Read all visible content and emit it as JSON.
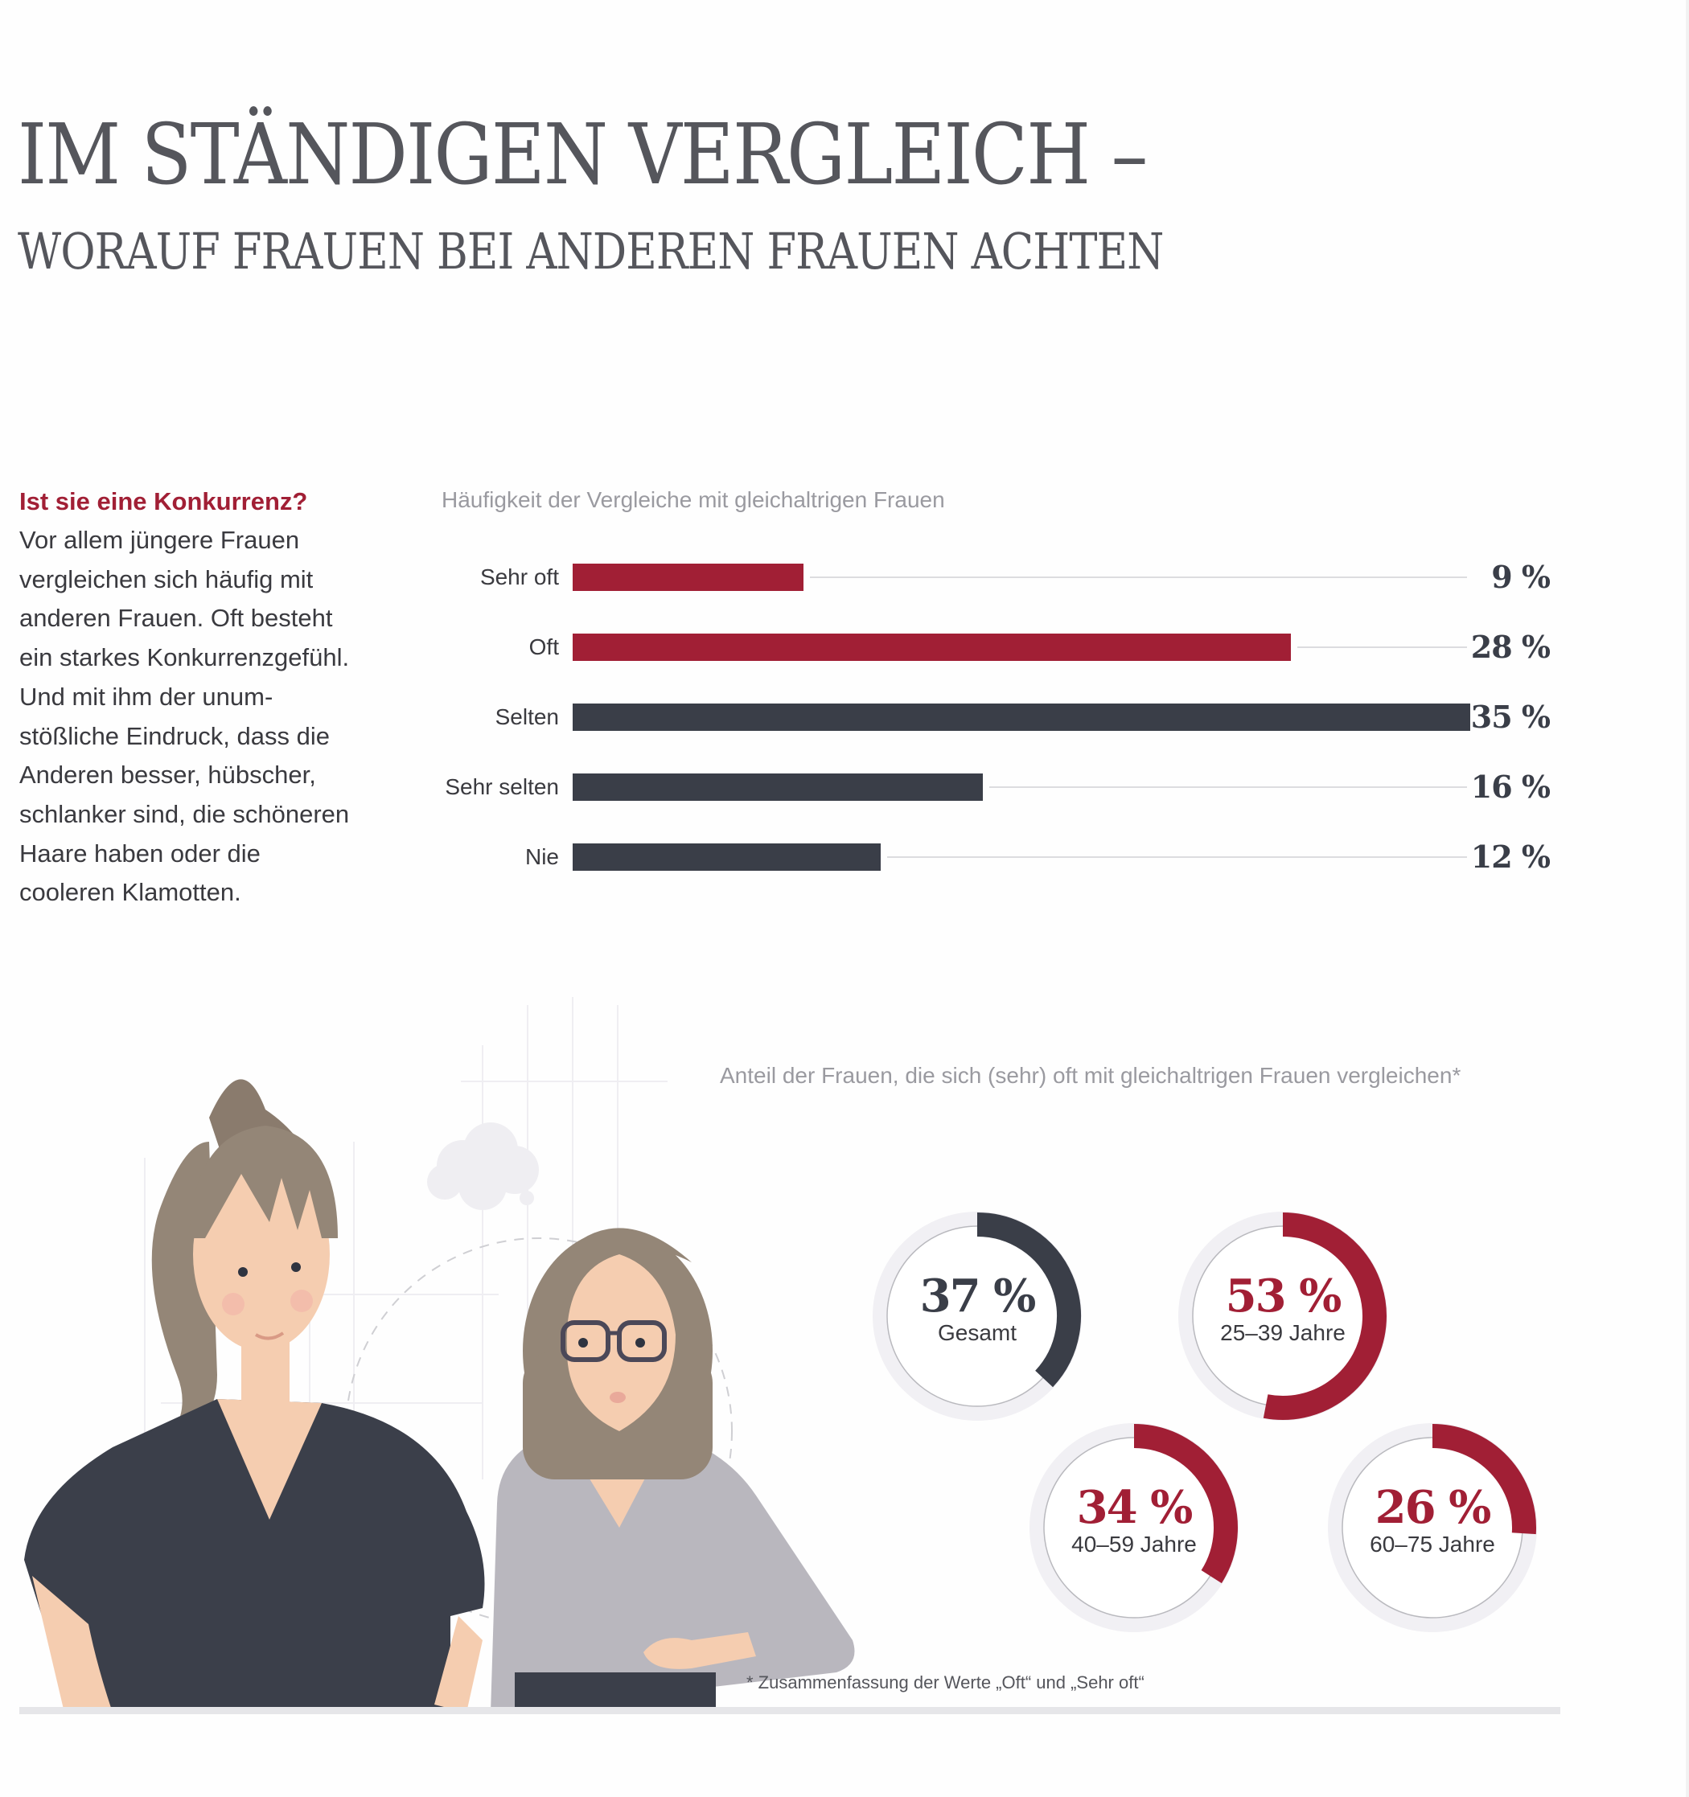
{
  "header": {
    "title_line1": "IM STÄNDIGEN VERGLEICH –",
    "title_line2": "WORAUF FRAUEN BEI ANDEREN FRAUEN ACHTEN"
  },
  "intro": {
    "heading": "Ist sie eine Konkurrenz?",
    "lines": [
      "Vor allem jüngere Frauen",
      "vergleichen sich häufig mit",
      "anderen Frauen. Oft besteht",
      "ein starkes Konkurrenzgefühl.",
      "Und mit ihm der unum-",
      "stößliche Eindruck, dass die",
      "Anderen besser, hübscher,",
      "schlanker sind, die schöneren",
      "Haare haben oder die",
      "cooleren Klamotten."
    ]
  },
  "colors": {
    "accent_red": "#a11f35",
    "dark": "#3a3e48",
    "track": "#dcdcdf",
    "ring_bg": "#f1f0f4",
    "ring_line": "#b9b9be"
  },
  "chart_data": [
    {
      "type": "bar",
      "orientation": "horizontal",
      "title": "Häufigkeit der Vergleiche mit gleichaltrigen Frauen",
      "categories": [
        "Sehr oft",
        "Oft",
        "Selten",
        "Sehr selten",
        "Nie"
      ],
      "values": [
        9,
        28,
        35,
        16,
        12
      ],
      "value_labels": [
        "9 %",
        "28 %",
        "35 %",
        "16 %",
        "12 %"
      ],
      "bar_colors": [
        "#a11f35",
        "#a11f35",
        "#3a3e48",
        "#3a3e48",
        "#3a3e48"
      ],
      "xlim": [
        0,
        35
      ],
      "unit": "%",
      "grid": false
    },
    {
      "type": "pie",
      "variant": "donut",
      "title": "Anteil der Frauen, die sich (sehr) oft mit gleichaltrigen Frauen vergleichen*",
      "items": [
        {
          "label": "Gesamt",
          "value": 37,
          "value_label": "37 %",
          "color": "#3a3e48",
          "text_color": "#3a3e48"
        },
        {
          "label": "25–39 Jahre",
          "value": 53,
          "value_label": "53 %",
          "color": "#a11f35",
          "text_color": "#a11f35"
        },
        {
          "label": "40–59 Jahre",
          "value": 34,
          "value_label": "34 %",
          "color": "#a11f35",
          "text_color": "#a11f35"
        },
        {
          "label": "60–75 Jahre",
          "value": 26,
          "value_label": "26 %",
          "color": "#a11f35",
          "text_color": "#a11f35"
        }
      ],
      "footnote": "* Zusammenfassung der Werte „Oft“ und „Sehr oft“"
    }
  ],
  "illustration": {
    "icons": [
      "woman-ponytail-illustration",
      "woman-glasses-illustration",
      "thought-cloud-icon"
    ]
  }
}
